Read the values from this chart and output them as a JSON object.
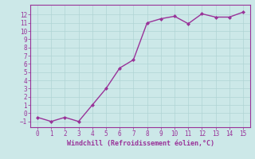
{
  "x": [
    0,
    1,
    2,
    3,
    4,
    5,
    6,
    7,
    8,
    9,
    10,
    11,
    12,
    13,
    14,
    15
  ],
  "y": [
    -0.5,
    -1.0,
    -0.5,
    -1.0,
    1.0,
    3.0,
    5.5,
    6.5,
    11.0,
    11.5,
    11.8,
    10.9,
    12.1,
    11.7,
    11.7,
    12.3
  ],
  "line_color": "#993399",
  "marker": "D",
  "marker_size": 2,
  "xlabel": "Windchill (Refroidissement éolien,°C)",
  "xlim": [
    -0.5,
    15.5
  ],
  "ylim": [
    -1.7,
    13.2
  ],
  "yticks": [
    -1,
    0,
    1,
    2,
    3,
    4,
    5,
    6,
    7,
    8,
    9,
    10,
    11,
    12
  ],
  "xticks": [
    0,
    1,
    2,
    3,
    4,
    5,
    6,
    7,
    8,
    9,
    10,
    11,
    12,
    13,
    14,
    15
  ],
  "background_color": "#cce8e8",
  "grid_color": "#b0d4d4",
  "tick_color": "#993399",
  "label_color": "#993399",
  "linewidth": 1.0,
  "tick_labelsize": 5.5,
  "xlabel_fontsize": 6.0
}
